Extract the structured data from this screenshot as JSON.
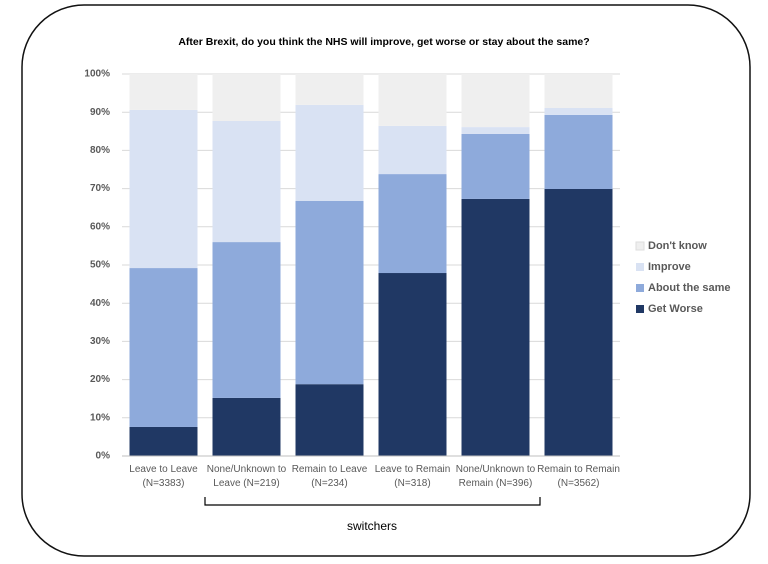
{
  "chart_data": {
    "type": "stacked_bar",
    "title": "After Brexit, do you think the NHS will improve, get worse or stay about the same?",
    "categories": [
      "Leave to Leave\n(N=3383)",
      "None/Unknown to\nLeave (N=219)",
      "Remain to Leave\n(N=234)",
      "Leave to Remain\n(N=318)",
      "None/Unknown to\nRemain (N=396)",
      "Remain to Remain\n(N=3562)"
    ],
    "series": [
      {
        "name": "Get Worse",
        "color": "#203864",
        "values": [
          7.6,
          15.2,
          18.8,
          47.9,
          67.3,
          69.9
        ]
      },
      {
        "name": "About the same",
        "color": "#8eaadb",
        "values": [
          41.6,
          40.8,
          48.0,
          25.9,
          17.0,
          19.4
        ]
      },
      {
        "name": "Improve",
        "color": "#d9e2f3",
        "values": [
          41.4,
          31.7,
          25.1,
          12.6,
          1.8,
          1.8
        ]
      },
      {
        "name": "Don't know",
        "color": "#efefef",
        "values": [
          9.4,
          12.3,
          8.1,
          13.6,
          13.9,
          8.9
        ]
      }
    ],
    "ylim": [
      0,
      100
    ],
    "yticks": [
      {
        "value": 0,
        "label": "0%"
      },
      {
        "value": 10,
        "label": "10%"
      },
      {
        "value": 20,
        "label": "20%"
      },
      {
        "value": 30,
        "label": "30%"
      },
      {
        "value": 40,
        "label": "40%"
      },
      {
        "value": 50,
        "label": "50%"
      },
      {
        "value": 60,
        "label": "60%"
      },
      {
        "value": 70,
        "label": "70%"
      },
      {
        "value": 80,
        "label": "80%"
      },
      {
        "value": 90,
        "label": "90%"
      },
      {
        "value": 100,
        "label": "100%"
      }
    ],
    "grid": true,
    "legend": "right",
    "annotation": "switchers"
  }
}
